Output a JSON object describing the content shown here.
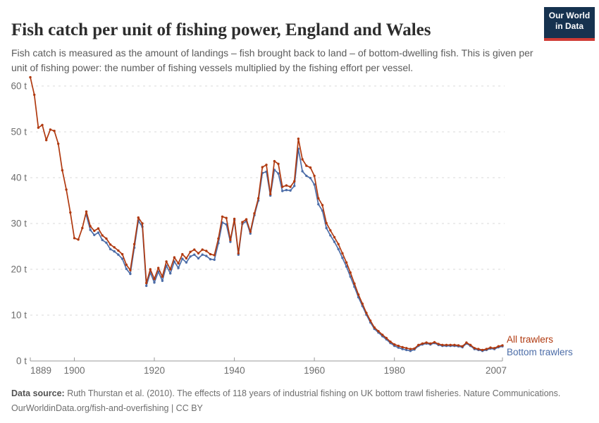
{
  "header": {
    "title": "Fish catch per unit of fishing power, England and Wales",
    "subtitle": "Fish catch is measured as the amount of landings – fish brought back to land – of bottom-dwelling fish. This is given per unit of fishing power: the number of fishing vessels multiplied by the fishing effort per vessel."
  },
  "logo": {
    "line1": "Our World",
    "line2": "in Data"
  },
  "chart_data": {
    "type": "line",
    "title": "Fish catch per unit of fishing power, England and Wales",
    "unit": "t",
    "ylabel": "",
    "xlabel": "",
    "ylim": [
      0,
      62
    ],
    "x_range": [
      1889,
      2007
    ],
    "grid": "horizontal-dashed",
    "legend_position": "end-of-line",
    "y_ticks": [
      0,
      10,
      20,
      30,
      40,
      50,
      60
    ],
    "y_tick_suffix": " t",
    "x_ticks": [
      1889,
      1900,
      1920,
      1940,
      1960,
      1980,
      2007
    ],
    "series": [
      {
        "name": "All trawlers",
        "color": "#b0390f",
        "start_year": 1889,
        "values": [
          61.9,
          58.1,
          50.9,
          51.5,
          48.2,
          50.5,
          50.2,
          47.4,
          41.6,
          37.4,
          32.4,
          26.8,
          26.5,
          29.0,
          32.6,
          29.4,
          28.4,
          28.9,
          27.4,
          26.7,
          25.4,
          24.8,
          24.1,
          23.3,
          21.0,
          19.8,
          25.5,
          31.3,
          30.0,
          17.0,
          20.0,
          17.9,
          20.3,
          18.4,
          21.7,
          20.0,
          22.6,
          21.3,
          23.3,
          22.4,
          23.8,
          24.3,
          23.5,
          24.3,
          24.0,
          23.3,
          23.1,
          26.7,
          31.5,
          31.2,
          26.4,
          31.0,
          23.5,
          30.3,
          30.9,
          28.2,
          32.2,
          35.5,
          42.3,
          42.8,
          36.4,
          43.6,
          43.0,
          38.0,
          38.3,
          38.0,
          39.2,
          48.5,
          44.0,
          42.6,
          42.2,
          40.4,
          35.5,
          34.0,
          30.1,
          28.5,
          27.0,
          25.5,
          23.5,
          21.5,
          19.3,
          16.9,
          14.5,
          12.5,
          10.5,
          8.8,
          7.3,
          6.5,
          5.7,
          5.0,
          4.2,
          3.6,
          3.3,
          3.0,
          2.8,
          2.6,
          2.7,
          3.5,
          3.8,
          4.0,
          3.8,
          4.1,
          3.7,
          3.5,
          3.5,
          3.5,
          3.5,
          3.4,
          3.2,
          4.0,
          3.5,
          2.8,
          2.6,
          2.4,
          2.6,
          2.9,
          2.8,
          3.2,
          3.4
        ]
      },
      {
        "name": "Bottom trawlers",
        "color": "#4c6da8",
        "start_year": 1903,
        "values": [
          31.8,
          28.6,
          27.5,
          28.0,
          26.4,
          25.8,
          24.4,
          23.9,
          23.2,
          22.3,
          20.1,
          19.0,
          24.7,
          30.6,
          29.3,
          16.4,
          19.3,
          17.1,
          19.5,
          17.5,
          20.8,
          19.1,
          21.7,
          20.3,
          22.3,
          21.5,
          22.8,
          23.2,
          22.4,
          23.2,
          22.9,
          22.2,
          22.1,
          25.7,
          30.2,
          29.8,
          26.0,
          30.7,
          23.2,
          29.9,
          30.5,
          27.8,
          31.8,
          35.0,
          41.0,
          41.3,
          36.1,
          41.7,
          40.9,
          37.1,
          37.3,
          37.2,
          38.2,
          46.3,
          41.4,
          40.4,
          39.9,
          38.5,
          34.2,
          32.8,
          29.0,
          27.4,
          26.0,
          24.4,
          22.5,
          20.6,
          18.4,
          16.2,
          13.9,
          12.0,
          10.1,
          8.4,
          7.0,
          6.2,
          5.4,
          4.7,
          3.9,
          3.3,
          2.9,
          2.6,
          2.4,
          2.2,
          2.5,
          3.3,
          3.6,
          3.8,
          3.6,
          3.9,
          3.5,
          3.3,
          3.3,
          3.3,
          3.3,
          3.2,
          3.0,
          3.8,
          3.3,
          2.6,
          2.4,
          2.2,
          2.4,
          2.7,
          2.6,
          3.0,
          3.2
        ]
      }
    ],
    "colors": {
      "grid": "#dadada",
      "axis": "#9a9a9a",
      "tick_text": "#6d6d6d"
    }
  },
  "footer": {
    "source_label": "Data source:",
    "source_text": " Ruth Thurstan et al. (2010). The effects of 118 years of industrial fishing on UK bottom trawl fisheries. Nature Communications.",
    "line2": "OurWorldinData.org/fish-and-overfishing | CC BY"
  }
}
